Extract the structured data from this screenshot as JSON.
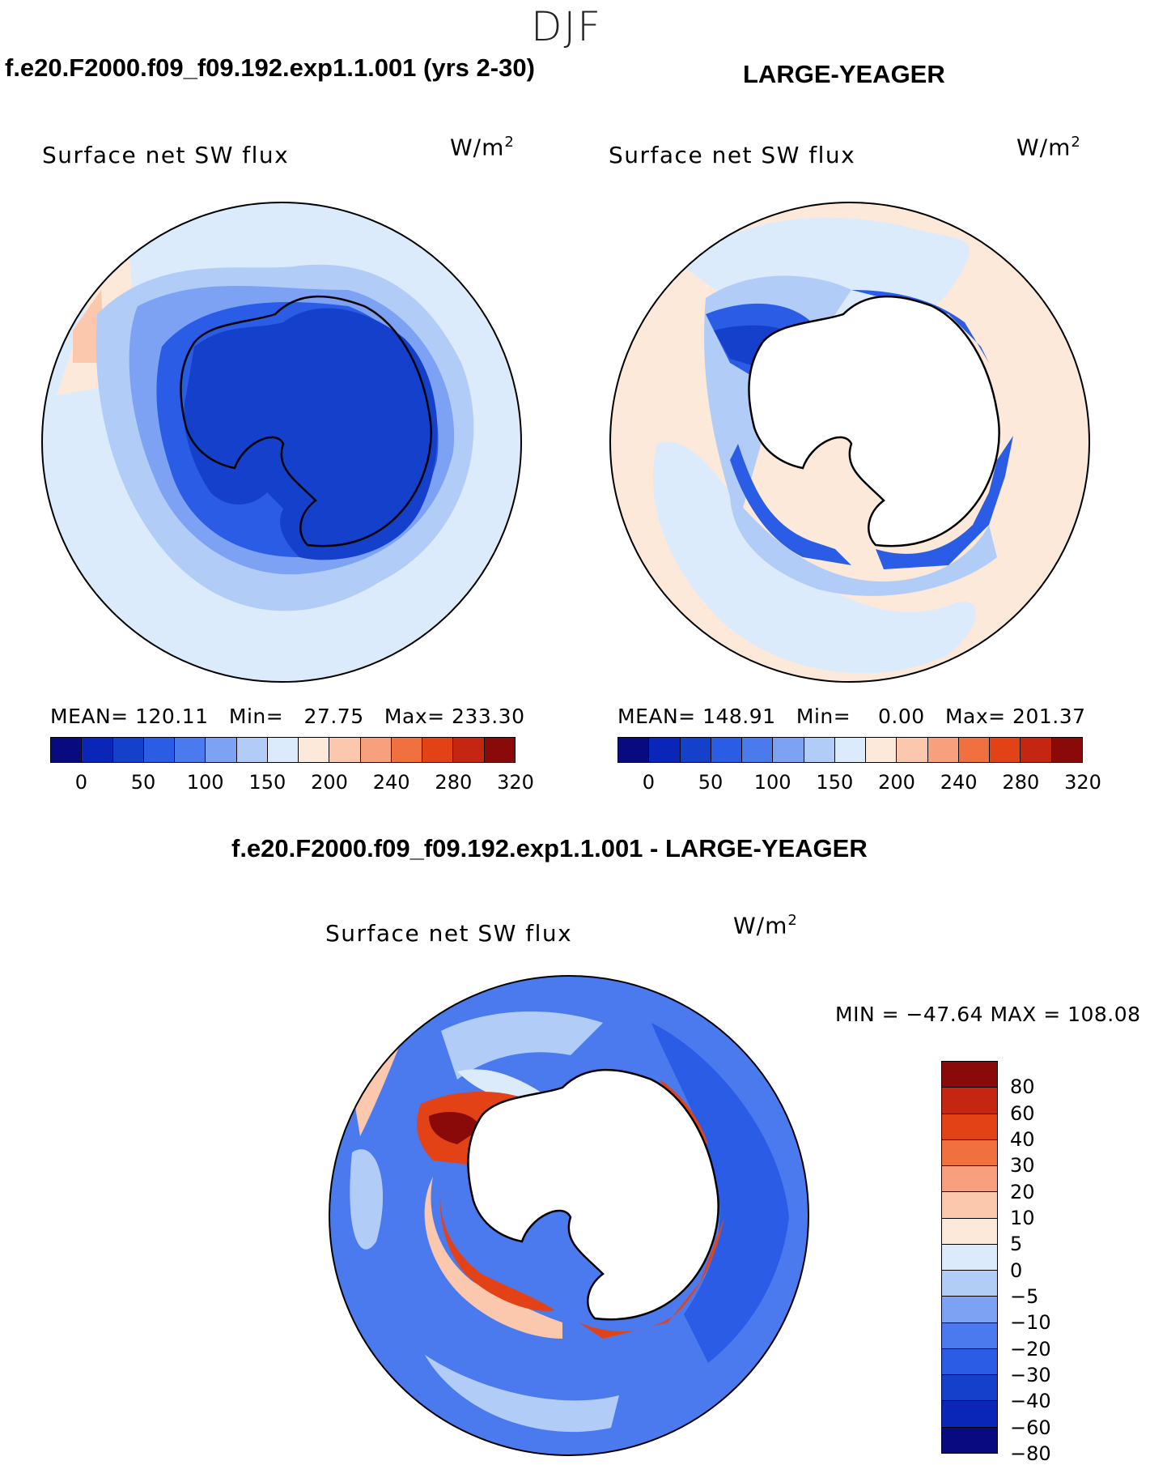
{
  "season": "DJF",
  "top_left": {
    "case_title": "f.e20.F2000.f09_f09.192.exp1.1.001 (yrs 2-30)",
    "field": "Surface net SW flux",
    "units": "W/m",
    "units_sup": "2",
    "stats": "MEAN= 120.11   Min=   27.75   Max= 233.30"
  },
  "top_right": {
    "case_title": "LARGE-YEAGER",
    "field": "Surface net SW flux",
    "units": "W/m",
    "units_sup": "2",
    "stats": "MEAN= 148.91   Min=    0.00   Max= 201.37"
  },
  "bottom": {
    "case_title": "f.e20.F2000.f09_f09.192.exp1.1.001 - LARGE-YEAGER",
    "field": "Surface net SW flux",
    "units": "W/m",
    "units_sup": "2",
    "stats": "MIN = −47.64 MAX = 108.08"
  },
  "colorbar_abs": {
    "colors": [
      "#0a0a80",
      "#0a26b8",
      "#1440cc",
      "#2a5ce6",
      "#4a7aee",
      "#7da2f4",
      "#b2ccf8",
      "#dcebfc",
      "#fde9da",
      "#fcc8ad",
      "#f8a07d",
      "#f0703f",
      "#e34216",
      "#c42612",
      "#8a0a0a"
    ],
    "ticks": [
      "0",
      "50",
      "100",
      "150",
      "200",
      "240",
      "280",
      "320"
    ]
  },
  "colorbar_diff": {
    "colors": [
      "#8a0a0a",
      "#c42612",
      "#e34216",
      "#f0703f",
      "#f8a07d",
      "#fcc8ad",
      "#fde9da",
      "#dcebfc",
      "#b2ccf8",
      "#7da2f4",
      "#4a7aee",
      "#2a5ce6",
      "#1440cc",
      "#0a26b8",
      "#0a0a80"
    ],
    "ticks": [
      "80",
      "60",
      "40",
      "30",
      "20",
      "10",
      "5",
      "0",
      "−5",
      "−10",
      "−20",
      "−30",
      "−40",
      "−60",
      "−80"
    ]
  },
  "map_colors": {
    "ocean_light": "#dcebfc",
    "ocean_mid": "#b2ccf8",
    "ocean_blue": "#7da2f4",
    "ice_dark": "#2a5ce6",
    "ice_darker": "#1440cc",
    "warm_light": "#fde9da",
    "warm_mid": "#fcc8ad",
    "diff_blue": "#4a7aee",
    "diff_dark": "#2a5ce6",
    "diff_red": "#e34216",
    "diff_darkred": "#8a0a0a",
    "land_none": "#ffffff"
  }
}
